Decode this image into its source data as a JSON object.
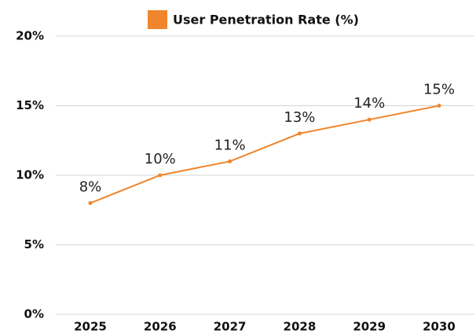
{
  "chart_data": {
    "type": "line",
    "categories": [
      "2025",
      "2026",
      "2027",
      "2028",
      "2029",
      "2030"
    ],
    "series": [
      {
        "name": "User Penetration Rate (%)",
        "color": "#f0862c",
        "values": [
          8,
          10,
          11,
          13,
          14,
          15
        ],
        "value_labels": [
          "8%",
          "10%",
          "11%",
          "13%",
          "14%",
          "15%"
        ]
      }
    ],
    "ylim": [
      0,
      20
    ],
    "yticks": [
      {
        "value": 0,
        "label": "0%"
      },
      {
        "value": 5,
        "label": "5%"
      },
      {
        "value": 10,
        "label": "10%"
      },
      {
        "value": 15,
        "label": "15%"
      },
      {
        "value": 20,
        "label": "20%"
      }
    ],
    "grid": true,
    "legend": "top"
  }
}
